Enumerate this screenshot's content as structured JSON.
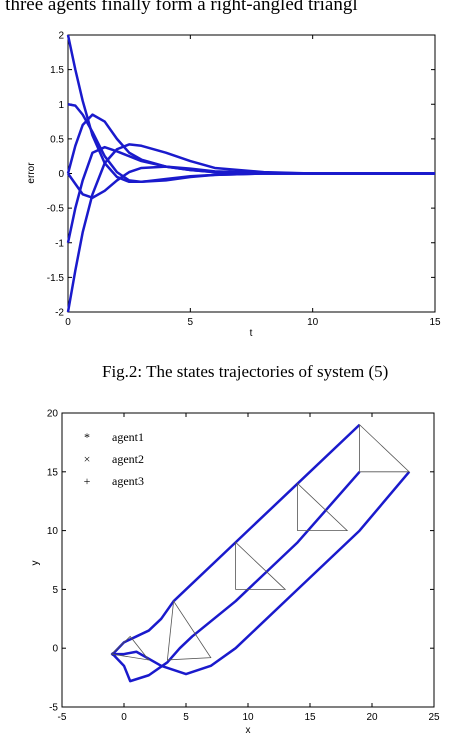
{
  "header_text": "e three agents finally form a right-angled triangl",
  "figure2": {
    "caption": "Fig.2: The states trajectories of system (5)",
    "chart_data": {
      "type": "line",
      "xlabel": "t",
      "ylabel": "error",
      "xlim": [
        0,
        15
      ],
      "ylim": [
        -2,
        2
      ],
      "xticks": [
        "0",
        "5",
        "10",
        "15"
      ],
      "yticks": [
        "2",
        "1.5",
        "1",
        "0.5",
        "0",
        "-0.5",
        "-1",
        "-1.5",
        "-2"
      ],
      "line_color": "#1a1acc",
      "series": [
        {
          "x": [
            0,
            0.3,
            0.6,
            1,
            1.5,
            2,
            2.5,
            3,
            4,
            5,
            6,
            8,
            10,
            15
          ],
          "values": [
            2,
            1.5,
            1.05,
            0.55,
            0.15,
            -0.05,
            -0.12,
            -0.12,
            -0.08,
            -0.04,
            -0.02,
            0,
            0,
            0
          ]
        },
        {
          "x": [
            0,
            0.3,
            0.6,
            1,
            1.5,
            2,
            2.5,
            3,
            4,
            5,
            6,
            8,
            10,
            15
          ],
          "values": [
            -2,
            -1.4,
            -0.85,
            -0.3,
            0.15,
            0.35,
            0.42,
            0.4,
            0.3,
            0.18,
            0.08,
            0.02,
            0,
            0
          ]
        },
        {
          "x": [
            0,
            0.3,
            0.6,
            1,
            1.5,
            2,
            2.5,
            3,
            4,
            5,
            6,
            8,
            10,
            15
          ],
          "values": [
            1,
            0.98,
            0.85,
            0.6,
            0.25,
            0.02,
            -0.1,
            -0.12,
            -0.1,
            -0.05,
            -0.02,
            0,
            0,
            0
          ]
        },
        {
          "x": [
            0,
            0.3,
            0.6,
            1,
            1.5,
            2,
            2.5,
            3,
            4,
            5,
            6,
            8,
            10,
            15
          ],
          "values": [
            -1,
            -0.5,
            -0.1,
            0.3,
            0.38,
            0.32,
            0.25,
            0.18,
            0.1,
            0.05,
            0.02,
            0,
            0,
            0
          ]
        },
        {
          "x": [
            0,
            0.3,
            0.6,
            1,
            1.5,
            2,
            2.5,
            3,
            4,
            5,
            6,
            8,
            10,
            15
          ],
          "values": [
            0,
            0.4,
            0.7,
            0.85,
            0.75,
            0.5,
            0.3,
            0.2,
            0.1,
            0.05,
            0.02,
            0,
            0,
            0
          ]
        },
        {
          "x": [
            0,
            0.3,
            0.6,
            1,
            1.5,
            2,
            2.5,
            3,
            4,
            5,
            6,
            8,
            10,
            15
          ],
          "values": [
            0,
            -0.15,
            -0.3,
            -0.35,
            -0.25,
            -0.1,
            0.02,
            0.08,
            0.1,
            0.07,
            0.03,
            0.01,
            0,
            0
          ]
        }
      ]
    }
  },
  "figure3": {
    "chart_data": {
      "type": "line",
      "xlabel": "x",
      "ylabel": "y",
      "xlim": [
        -5,
        25
      ],
      "ylim": [
        -5,
        20
      ],
      "xticks": [
        "-5",
        "0",
        "5",
        "10",
        "15",
        "20",
        "25"
      ],
      "yticks": [
        "20",
        "15",
        "10",
        "5",
        "0",
        "-5"
      ],
      "line_color": "#1a1acc",
      "legend": [
        "agent1",
        "agent2",
        "agent3"
      ],
      "series": [
        {
          "name": "agent1",
          "x": [
            -1,
            0,
            1,
            2,
            3,
            4,
            9,
            14,
            19
          ],
          "values": [
            -0.6,
            0.5,
            1,
            1.5,
            2.5,
            4,
            9,
            14,
            19
          ]
        },
        {
          "name": "agent2",
          "x": [
            -1,
            0,
            0.5,
            2,
            3.5,
            4.5,
            5.5,
            9,
            14,
            19
          ],
          "values": [
            -0.4,
            -1.5,
            -2.8,
            -2.3,
            -1.2,
            0,
            1,
            4,
            9,
            15
          ]
        },
        {
          "name": "agent3",
          "x": [
            -1,
            0,
            1,
            3,
            5,
            7,
            9,
            14,
            19,
            23
          ],
          "values": [
            -0.5,
            -0.5,
            -0.3,
            -1.5,
            -2.2,
            -1.5,
            0,
            5,
            10,
            15
          ]
        }
      ]
    }
  }
}
